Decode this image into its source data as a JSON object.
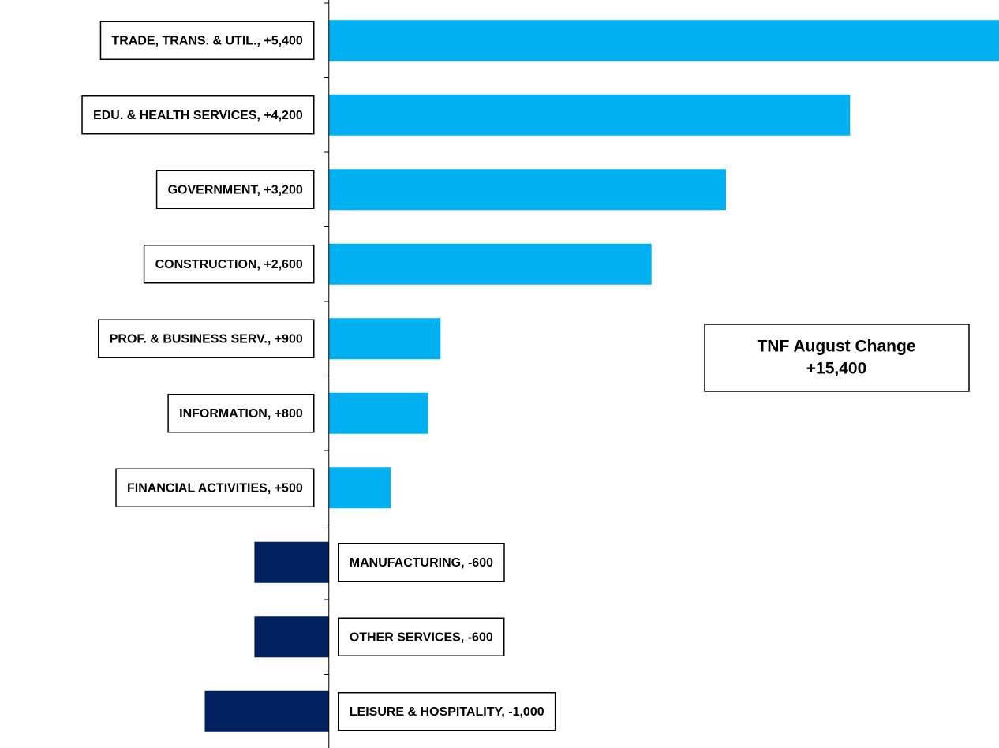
{
  "chart_data": {
    "type": "bar",
    "orientation": "horizontal",
    "categories": [
      "TRADE, TRANS. & UTIL., +5,400",
      "EDU. & HEALTH SERVICES, +4,200",
      "GOVERNMENT, +3,200",
      "CONSTRUCTION, +2,600",
      "PROF. & BUSINESS SERV., +900",
      "INFORMATION, +800",
      "FINANCIAL ACTIVITIES, +500",
      "MANUFACTURING, -600",
      "OTHER SERVICES, -600",
      "LEISURE & HOSPITALITY, -1,000"
    ],
    "values": [
      5400,
      4200,
      3200,
      2600,
      900,
      800,
      500,
      -600,
      -600,
      -1000
    ],
    "positive_color": "#00b0f0",
    "negative_color": "#002060",
    "xlim": [
      -2650,
      5400
    ],
    "annotation": [
      "TNF August Change",
      "+15,400"
    ]
  }
}
